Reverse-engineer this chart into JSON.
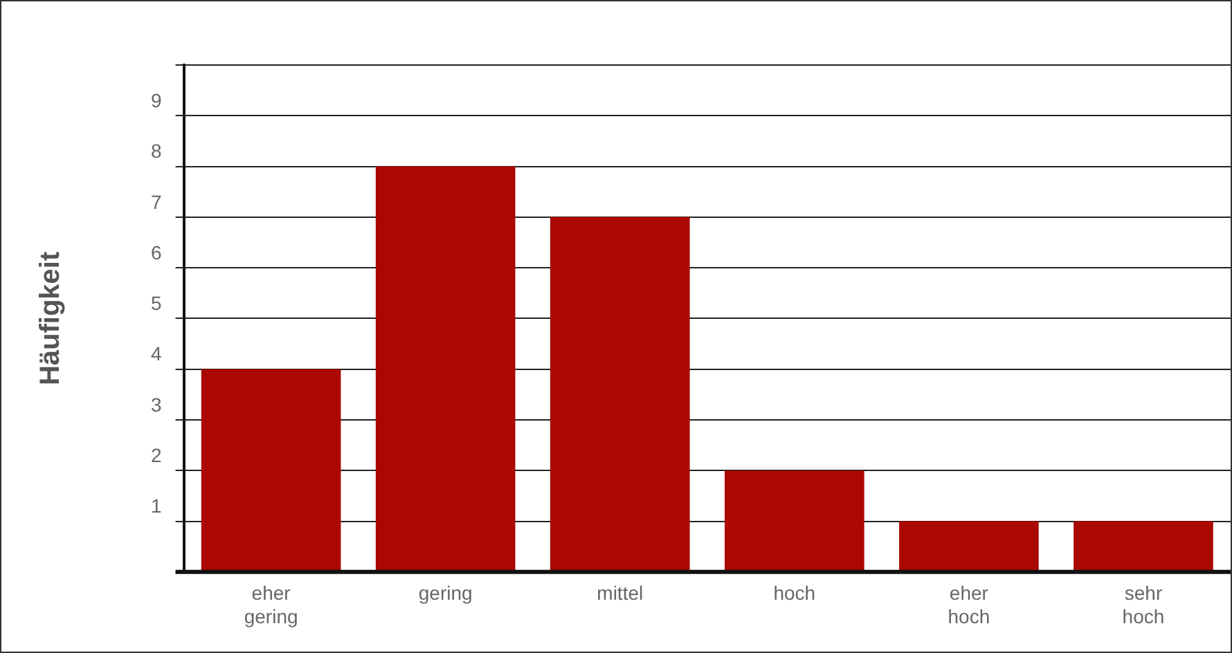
{
  "chart_data": {
    "type": "bar",
    "ylabel": "Häufigkeit",
    "categories": [
      "eher gering",
      "gering",
      "mittel",
      "hoch",
      "eher hoch",
      "sehr hoch"
    ],
    "values": [
      4,
      8,
      7,
      2,
      1,
      1
    ],
    "color": "#aa0800",
    "ylim": [
      0,
      10
    ],
    "yticks": [
      {
        "value": 0,
        "label": null
      },
      1,
      2,
      3,
      4,
      5,
      6,
      7,
      8,
      9,
      {
        "value": 10,
        "label": null
      }
    ],
    "grid": "y",
    "legend": false
  }
}
